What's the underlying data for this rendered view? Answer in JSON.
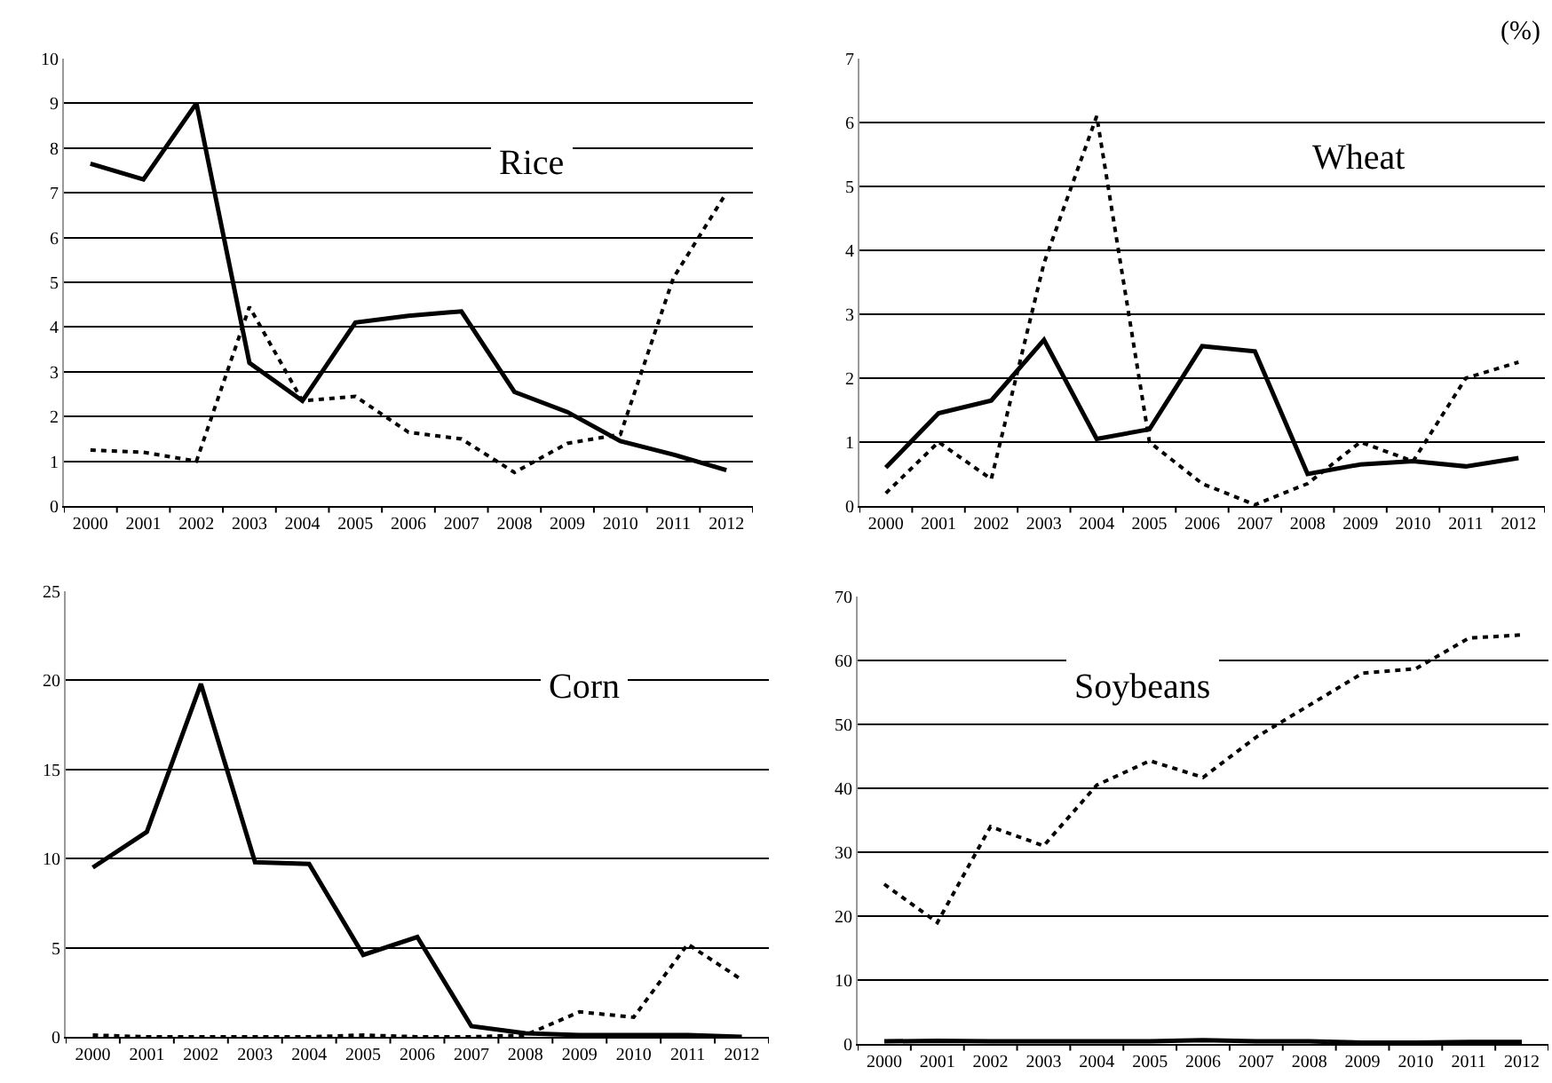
{
  "chart_data": [
    {
      "type": "line",
      "title": "Rice",
      "categories": [
        "2000",
        "2001",
        "2002",
        "2003",
        "2004",
        "2005",
        "2006",
        "2007",
        "2008",
        "2009",
        "2010",
        "2011",
        "2012"
      ],
      "ylim": [
        0,
        10
      ],
      "yticks": [
        0,
        1,
        2,
        3,
        4,
        5,
        6,
        7,
        8,
        9,
        10
      ],
      "grid": "y",
      "marker": "none",
      "series": [
        {
          "color": "#000000",
          "line_style": "solid",
          "values": [
            7.65,
            7.3,
            9.0,
            3.2,
            2.35,
            4.1,
            4.25,
            4.35,
            2.55,
            2.1,
            1.45,
            1.15,
            0.8
          ]
        },
        {
          "color": "#000000",
          "line_style": "dotted",
          "values": [
            1.25,
            1.2,
            1.0,
            4.45,
            2.35,
            2.45,
            1.65,
            1.5,
            0.75,
            1.4,
            1.6,
            5.1,
            7.0
          ]
        }
      ]
    },
    {
      "type": "line",
      "title": "Wheat",
      "annotations": [
        "(%)"
      ],
      "categories": [
        "2000",
        "2001",
        "2002",
        "2003",
        "2004",
        "2005",
        "2006",
        "2007",
        "2008",
        "2009",
        "2010",
        "2011",
        "2012"
      ],
      "ylim": [
        0,
        7
      ],
      "yticks": [
        0,
        1,
        2,
        3,
        4,
        5,
        6,
        7
      ],
      "grid": "y",
      "marker": "none",
      "series": [
        {
          "color": "#000000",
          "line_style": "solid",
          "values": [
            0.6,
            1.45,
            1.65,
            2.6,
            1.05,
            1.2,
            2.5,
            2.42,
            0.5,
            0.65,
            0.7,
            0.62,
            0.75
          ]
        },
        {
          "color": "#000000",
          "line_style": "dotted",
          "values": [
            0.2,
            1.0,
            0.42,
            3.8,
            6.1,
            1.0,
            0.35,
            0.02,
            0.35,
            1.0,
            0.7,
            2.0,
            2.25
          ]
        }
      ]
    },
    {
      "type": "line",
      "title": "Corn",
      "categories": [
        "2000",
        "2001",
        "2002",
        "2003",
        "2004",
        "2005",
        "2006",
        "2007",
        "2008",
        "2009",
        "2010",
        "2011",
        "2012"
      ],
      "ylim": [
        0,
        25
      ],
      "yticks": [
        0,
        5,
        10,
        15,
        20,
        25
      ],
      "grid": "y",
      "marker": "none",
      "series": [
        {
          "color": "#000000",
          "line_style": "solid",
          "values": [
            9.5,
            11.5,
            19.8,
            9.8,
            9.7,
            4.6,
            5.6,
            0.6,
            0.2,
            0.1,
            0.1,
            0.1,
            0
          ]
        },
        {
          "color": "#000000",
          "line_style": "dotted",
          "values": [
            0.1,
            0,
            0,
            0,
            0,
            0.1,
            0,
            0,
            0.1,
            1.4,
            1.1,
            5.2,
            3.2
          ]
        }
      ]
    },
    {
      "type": "line",
      "title": "Soybeans",
      "categories": [
        "2000",
        "2001",
        "2002",
        "2003",
        "2004",
        "2005",
        "2006",
        "2007",
        "2008",
        "2009",
        "2010",
        "2011",
        "2012"
      ],
      "ylim": [
        0,
        70
      ],
      "yticks": [
        0,
        10,
        20,
        30,
        40,
        50,
        60,
        70
      ],
      "grid": "y",
      "marker": "none",
      "series": [
        {
          "color": "#000000",
          "line_style": "solid",
          "values": [
            0.4,
            0.5,
            0.4,
            0.4,
            0.4,
            0.4,
            0.6,
            0.4,
            0.4,
            0.2,
            0.2,
            0.3,
            0.3
          ]
        },
        {
          "color": "#000000",
          "line_style": "dotted",
          "values": [
            25,
            19,
            34,
            31,
            40.5,
            44.3,
            41.7,
            48,
            53,
            58,
            58.7,
            63.5,
            64
          ]
        }
      ]
    }
  ]
}
